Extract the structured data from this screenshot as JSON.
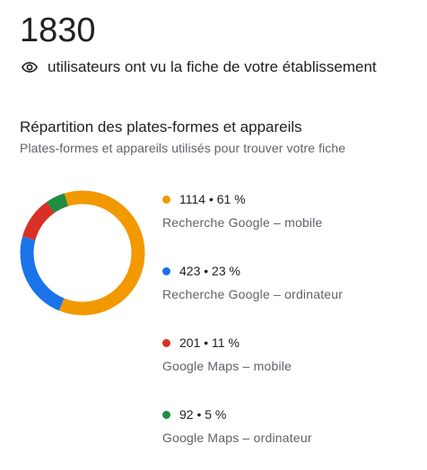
{
  "summary": {
    "total_views": "1830",
    "views_text": "utilisateurs ont vu la fiche de votre établissement",
    "icon": "eye-icon"
  },
  "breakdown": {
    "title": "Répartition des plates-formes et appareils",
    "subtitle": "Plates-formes et appareils utilisés pour trouver votre fiche"
  },
  "chart_data": {
    "type": "pie",
    "donut": true,
    "title": "",
    "legend_position": "right",
    "categories": [
      "Recherche Google – mobile",
      "Recherche Google – ordinateur",
      "Google Maps – mobile",
      "Google Maps – ordinateur"
    ],
    "values": [
      1114,
      423,
      201,
      92
    ],
    "percents": [
      61,
      23,
      11,
      5
    ],
    "colors": [
      "#f29900",
      "#1a73e8",
      "#d93025",
      "#1e8e3e"
    ],
    "legend": [
      {
        "value_text": "1114 • 61 %",
        "label": "Recherche Google – mobile",
        "color": "#f29900"
      },
      {
        "value_text": "423 • 23 %",
        "label": "Recherche Google – ordinateur",
        "color": "#1a73e8"
      },
      {
        "value_text": "201 • 11 %",
        "label": "Google Maps – mobile",
        "color": "#d93025"
      },
      {
        "value_text": "92 • 5 %",
        "label": "Google Maps – ordinateur",
        "color": "#1e8e3e"
      }
    ]
  }
}
